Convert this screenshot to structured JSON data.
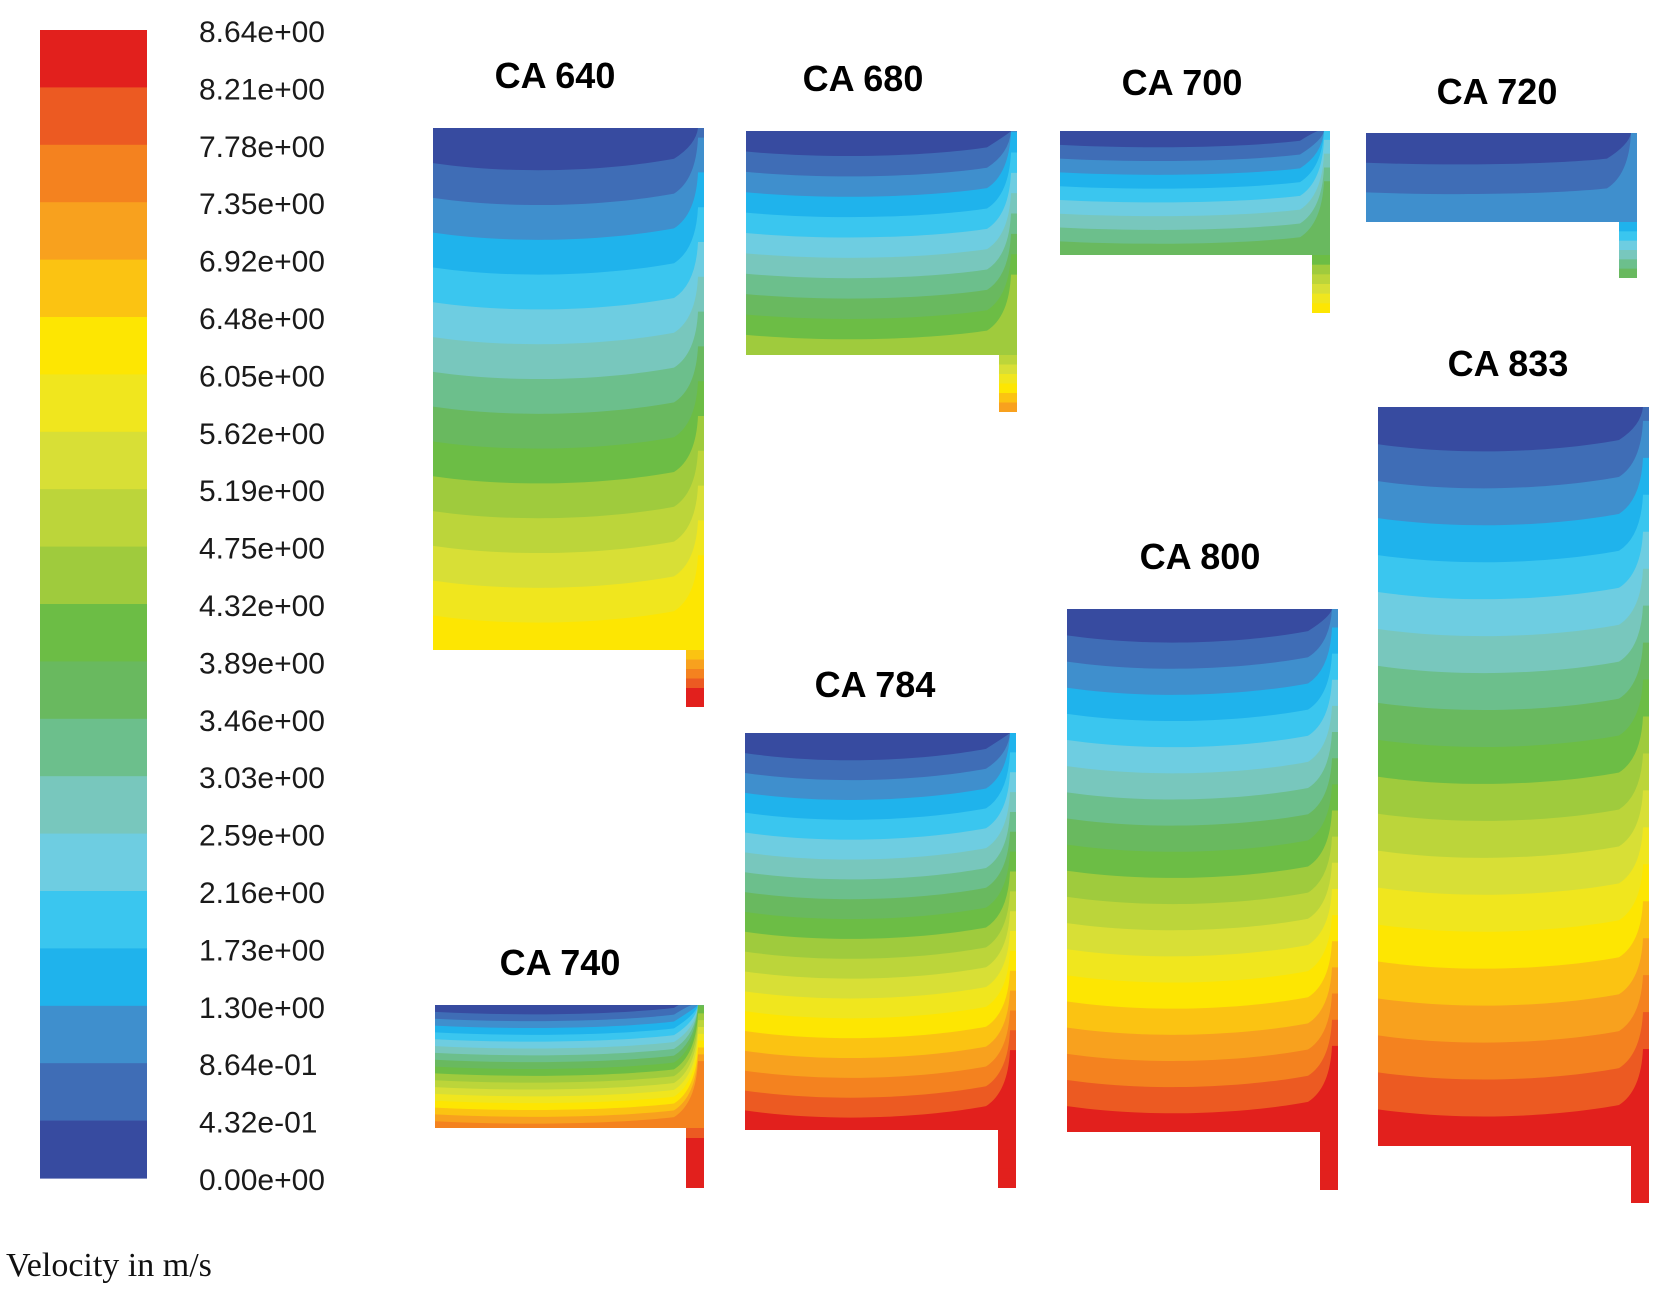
{
  "legend": {
    "title": "Velocity in m/s",
    "tick_labels": [
      "8.64e+00",
      "8.21e+00",
      "7.78e+00",
      "7.35e+00",
      "6.92e+00",
      "6.48e+00",
      "6.05e+00",
      "5.62e+00",
      "5.19e+00",
      "4.75e+00",
      "4.32e+00",
      "3.89e+00",
      "3.46e+00",
      "3.03e+00",
      "2.59e+00",
      "2.16e+00",
      "1.73e+00",
      "1.30e+00",
      "8.64e-01",
      "4.32e-01",
      "0.00e+00"
    ],
    "colors_top_to_bottom": [
      "#e2201d",
      "#ec5a22",
      "#f4821f",
      "#f8a11e",
      "#fbc312",
      "#fde602",
      "#f0e61e",
      "#d8df36",
      "#bcd53a",
      "#9fcb3d",
      "#6cbd45",
      "#69b95f",
      "#6cbf8c",
      "#78c7bd",
      "#6ecde1",
      "#3ac6ef",
      "#1fb3ec",
      "#3f8fcd",
      "#3f6db6",
      "#374ba0"
    ]
  },
  "panels": [
    {
      "label": "CA 640",
      "max_level": 14
    },
    {
      "label": "CA 680",
      "max_level": 10
    },
    {
      "label": "CA 700",
      "max_level": 8
    },
    {
      "label": "CA 720",
      "max_level": 2
    },
    {
      "label": "CA 740",
      "max_level": 17
    },
    {
      "label": "CA 784",
      "max_level": 19
    },
    {
      "label": "CA 800",
      "max_level": 19
    },
    {
      "label": "CA 833",
      "max_level": 19
    }
  ]
}
